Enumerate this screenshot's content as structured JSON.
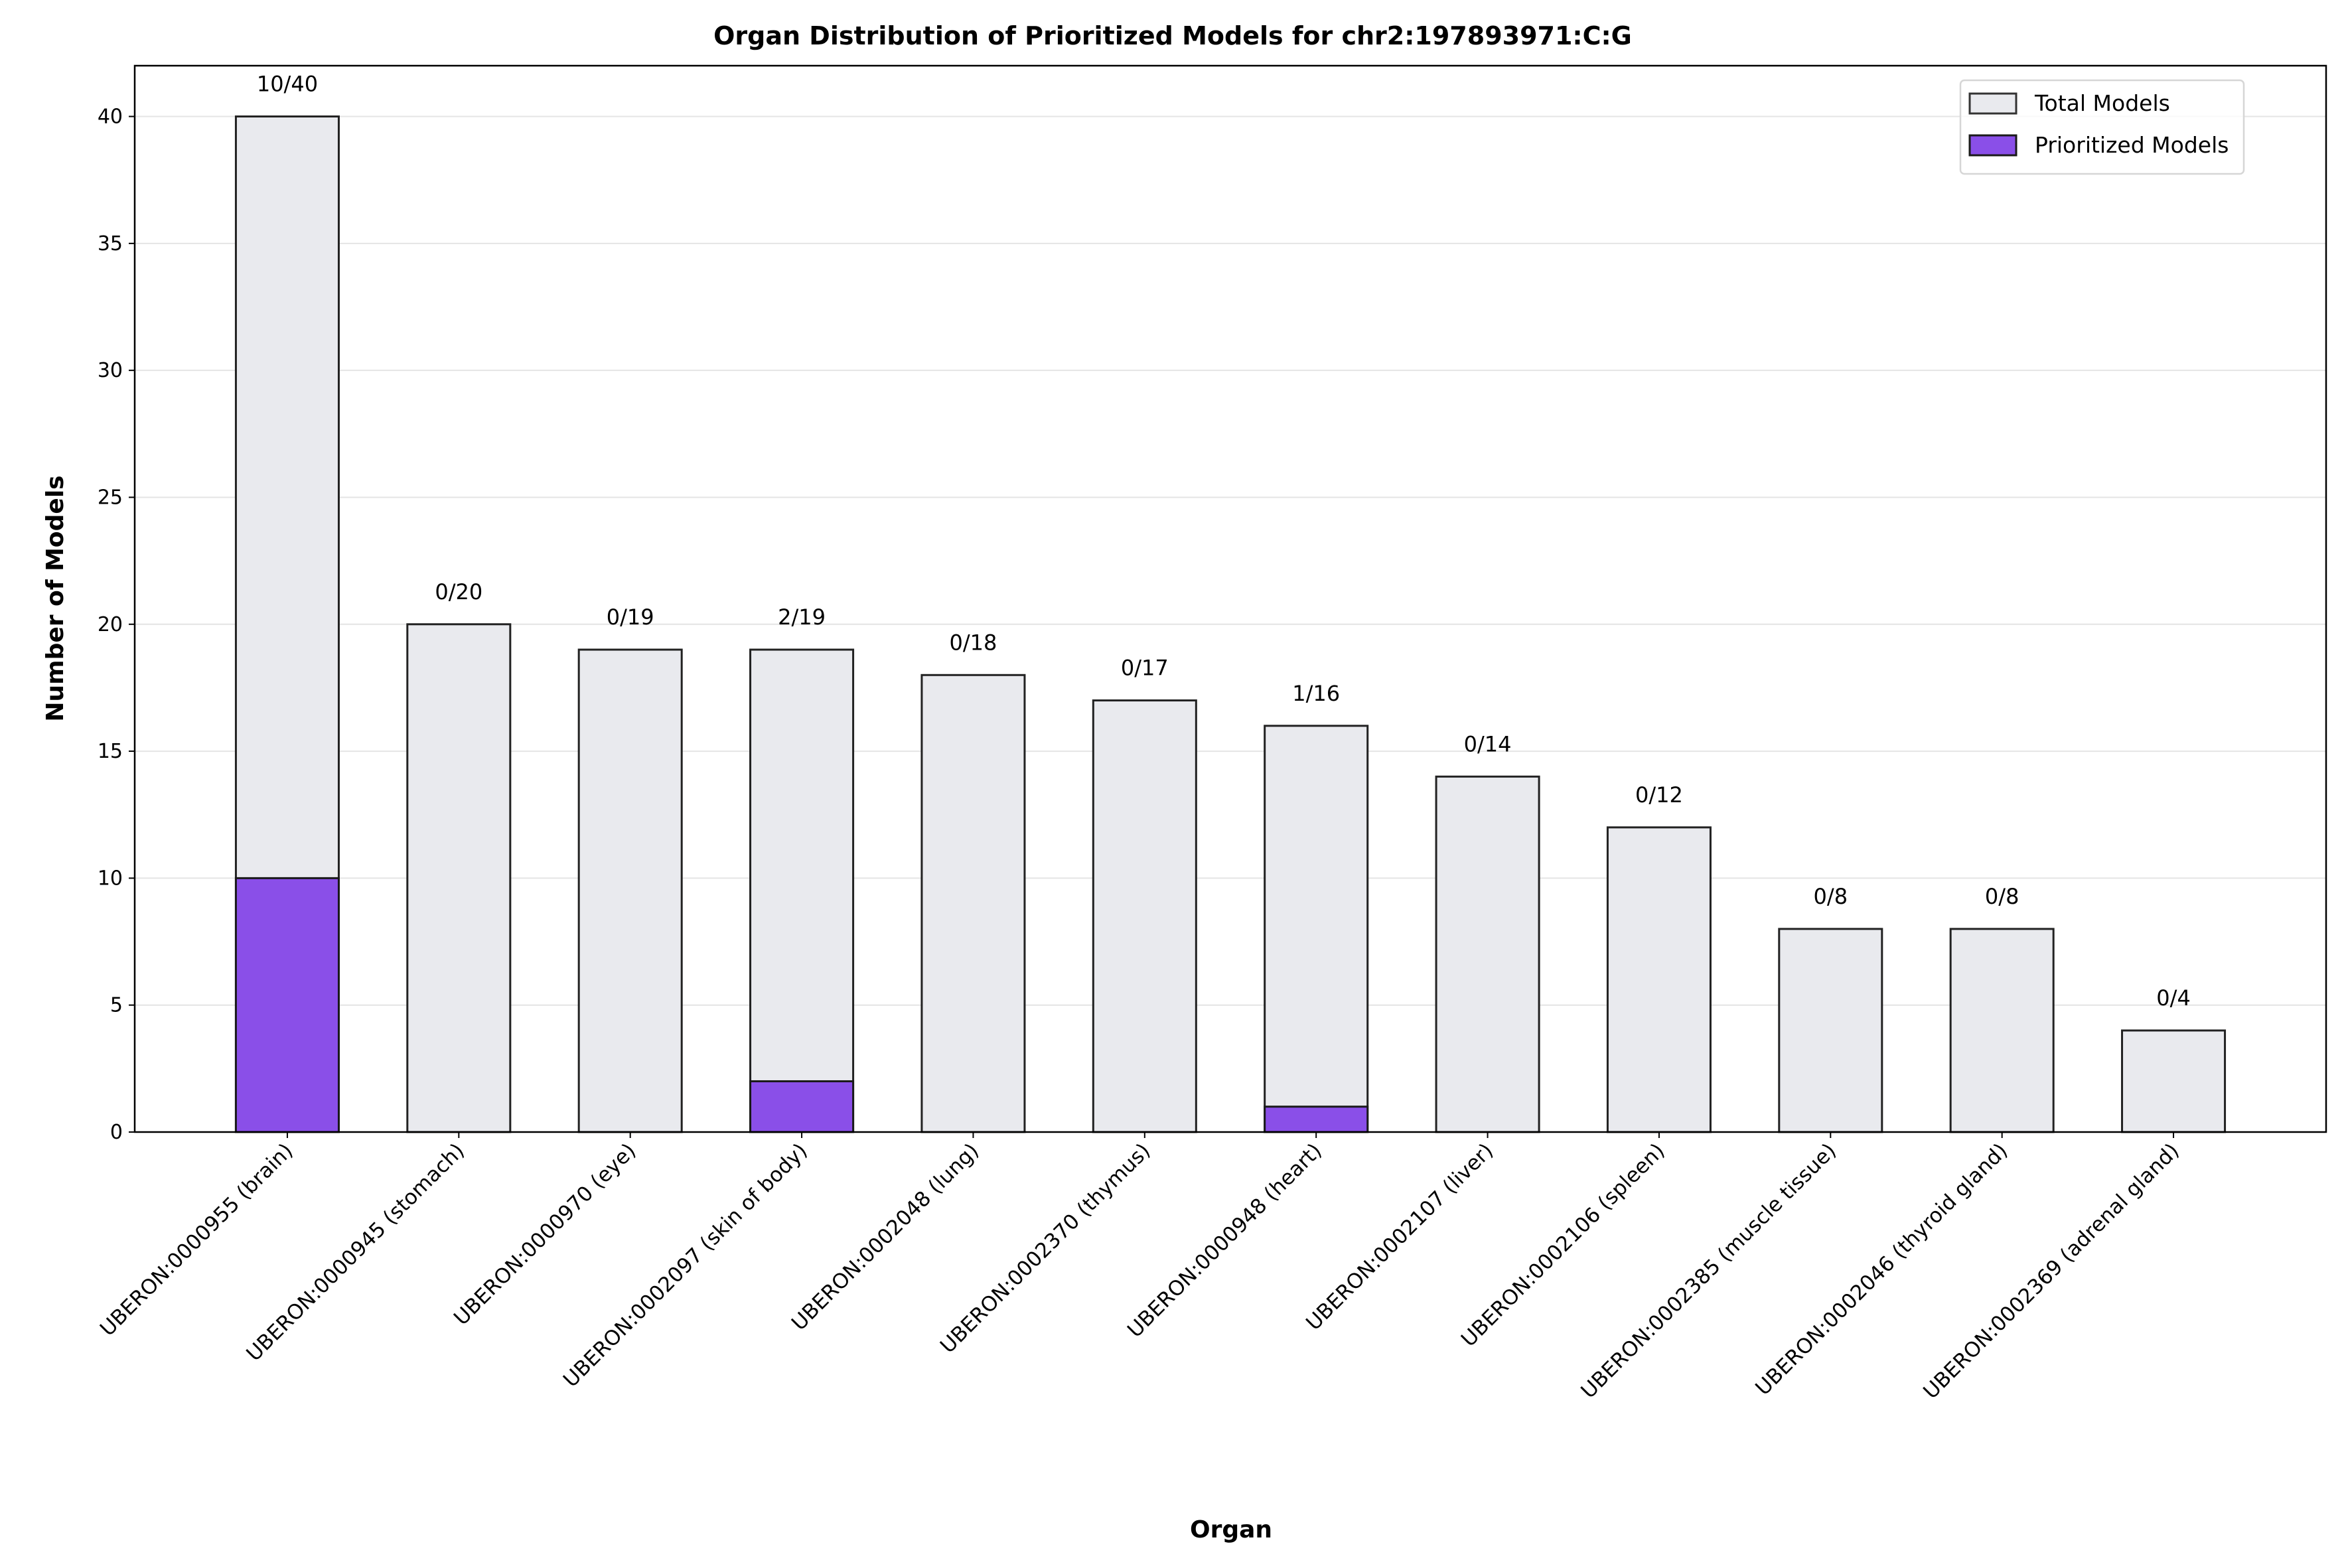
{
  "chart_data": {
    "type": "bar",
    "title": "Organ Distribution of Prioritized Models for chr2:197893971:C:G",
    "xlabel": "Organ",
    "ylabel": "Number of Models",
    "ylim": [
      0,
      42
    ],
    "yticks": [
      0,
      5,
      10,
      15,
      20,
      25,
      30,
      35,
      40
    ],
    "grid": "y",
    "legend_position": "top-right",
    "categories": [
      "UBERON:0000955 (brain)",
      "UBERON:0000945 (stomach)",
      "UBERON:0000970 (eye)",
      "UBERON:0002097 (skin of body)",
      "UBERON:0002048 (lung)",
      "UBERON:0002370 (thymus)",
      "UBERON:0000948 (heart)",
      "UBERON:0002107 (liver)",
      "UBERON:0002106 (spleen)",
      "UBERON:0002385 (muscle tissue)",
      "UBERON:0002046 (thyroid gland)",
      "UBERON:0002369 (adrenal gland)"
    ],
    "series": [
      {
        "name": "Total Models",
        "color": "#e9eaee",
        "values": [
          40,
          20,
          19,
          19,
          18,
          17,
          16,
          14,
          12,
          8,
          8,
          4
        ]
      },
      {
        "name": "Prioritized Models",
        "color": "#8a4fe8",
        "values": [
          10,
          0,
          0,
          2,
          0,
          0,
          1,
          0,
          0,
          0,
          0,
          0
        ]
      }
    ],
    "data_labels": [
      "10/40",
      "0/20",
      "0/19",
      "2/19",
      "0/18",
      "0/17",
      "1/16",
      "0/14",
      "0/12",
      "0/8",
      "0/8",
      "0/4"
    ]
  }
}
